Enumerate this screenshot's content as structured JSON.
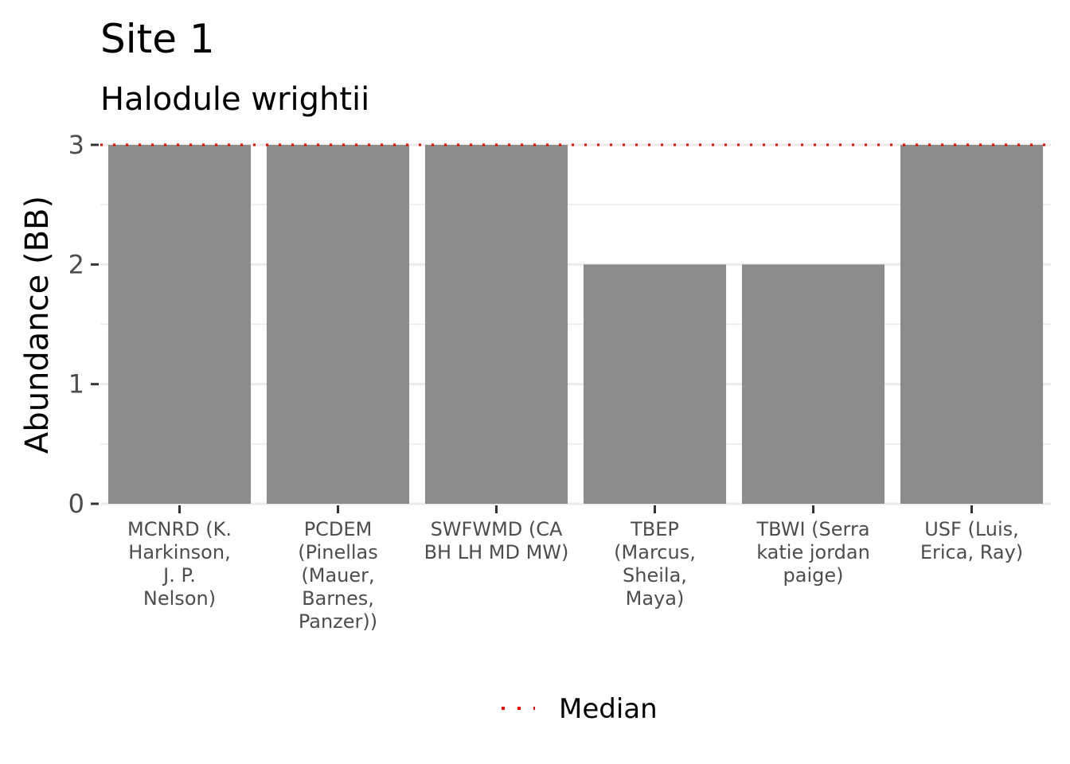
{
  "chart_data": {
    "type": "bar",
    "title": "Site 1",
    "subtitle": "Halodule wrightii",
    "xlabel": "",
    "ylabel": "Abundance (BB)",
    "categories": [
      [
        "MCNRD (K.",
        "Harkinson,",
        "J. P.",
        "Nelson)"
      ],
      [
        "PCDEM",
        "(Pinellas",
        "(Mauer,",
        "Barnes,",
        "Panzer))"
      ],
      [
        "SWFWMD (CA",
        "BH LH MD MW)"
      ],
      [
        "TBEP",
        "(Marcus,",
        "Sheila,",
        "Maya)"
      ],
      [
        "TBWI (Serra",
        "katie jordan",
        "paige)"
      ],
      [
        "USF (Luis,",
        "Erica, Ray)"
      ]
    ],
    "values": [
      3,
      3,
      3,
      2,
      2,
      3
    ],
    "ylim": [
      0,
      3
    ],
    "yticks": [
      0,
      1,
      2,
      3
    ],
    "median": 3,
    "bar_color": "#8c8c8c",
    "median_color": "#ff0000",
    "grid": true,
    "legend": {
      "position": "bottom",
      "entries": [
        {
          "name": "Median",
          "style": "dotted",
          "color": "#ff0000"
        }
      ]
    }
  }
}
